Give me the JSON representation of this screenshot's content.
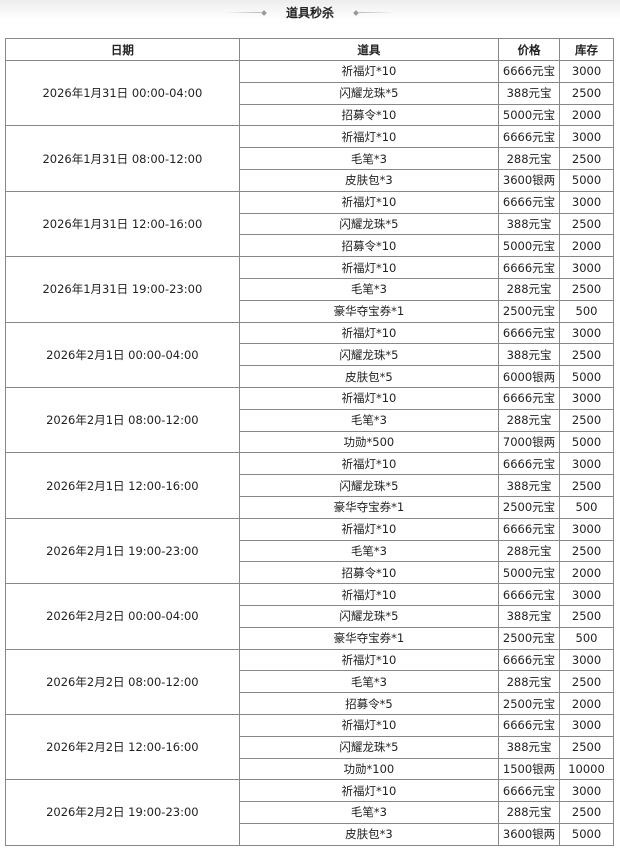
{
  "title": "道具秒杀",
  "headers": [
    "日期",
    "道具",
    "价格",
    "库存"
  ],
  "slots": [
    {
      "date": "2026年1月31日 00:00-04:00",
      "items": [
        [
          "祈福灯*10",
          "6666元宝",
          "3000"
        ],
        [
          "闪耀龙珠*5",
          "388元宝",
          "2500"
        ],
        [
          "招募令*10",
          "5000元宝",
          "2000"
        ]
      ]
    },
    {
      "date": "2026年1月31日 08:00-12:00",
      "items": [
        [
          "祈福灯*10",
          "6666元宝",
          "3000"
        ],
        [
          "毛笔*3",
          "288元宝",
          "2500"
        ],
        [
          "皮肤包*3",
          "3600银两",
          "5000"
        ]
      ]
    },
    {
      "date": "2026年1月31日 12:00-16:00",
      "items": [
        [
          "祈福灯*10",
          "6666元宝",
          "3000"
        ],
        [
          "闪耀龙珠*5",
          "388元宝",
          "2500"
        ],
        [
          "招募令*10",
          "5000元宝",
          "2000"
        ]
      ]
    },
    {
      "date": "2026年1月31日 19:00-23:00",
      "items": [
        [
          "祈福灯*10",
          "6666元宝",
          "3000"
        ],
        [
          "毛笔*3",
          "288元宝",
          "2500"
        ],
        [
          "豪华夺宝券*1",
          "2500元宝",
          "500"
        ]
      ]
    },
    {
      "date": "2026年2月1日 00:00-04:00",
      "items": [
        [
          "祈福灯*10",
          "6666元宝",
          "3000"
        ],
        [
          "闪耀龙珠*5",
          "388元宝",
          "2500"
        ],
        [
          "皮肤包*5",
          "6000银两",
          "5000"
        ]
      ]
    },
    {
      "date": "2026年2月1日 08:00-12:00",
      "items": [
        [
          "祈福灯*10",
          "6666元宝",
          "3000"
        ],
        [
          "毛笔*3",
          "288元宝",
          "2500"
        ],
        [
          "功勋*500",
          "7000银两",
          "5000"
        ]
      ]
    },
    {
      "date": "2026年2月1日 12:00-16:00",
      "items": [
        [
          "祈福灯*10",
          "6666元宝",
          "3000"
        ],
        [
          "闪耀龙珠*5",
          "388元宝",
          "2500"
        ],
        [
          "豪华夺宝券*1",
          "2500元宝",
          "500"
        ]
      ]
    },
    {
      "date": "2026年2月1日 19:00-23:00",
      "items": [
        [
          "祈福灯*10",
          "6666元宝",
          "3000"
        ],
        [
          "毛笔*3",
          "288元宝",
          "2500"
        ],
        [
          "招募令*10",
          "5000元宝",
          "2000"
        ]
      ]
    },
    {
      "date": "2026年2月2日 00:00-04:00",
      "items": [
        [
          "祈福灯*10",
          "6666元宝",
          "3000"
        ],
        [
          "闪耀龙珠*5",
          "388元宝",
          "2500"
        ],
        [
          "豪华夺宝券*1",
          "2500元宝",
          "500"
        ]
      ]
    },
    {
      "date": "2026年2月2日 08:00-12:00",
      "items": [
        [
          "祈福灯*10",
          "6666元宝",
          "3000"
        ],
        [
          "毛笔*3",
          "288元宝",
          "2500"
        ],
        [
          "招募令*5",
          "2500元宝",
          "2000"
        ]
      ]
    },
    {
      "date": "2026年2月2日 12:00-16:00",
      "items": [
        [
          "祈福灯*10",
          "6666元宝",
          "3000"
        ],
        [
          "闪耀龙珠*5",
          "388元宝",
          "2500"
        ],
        [
          "功勋*100",
          "1500银两",
          "10000"
        ]
      ]
    },
    {
      "date": "2026年2月2日 19:00-23:00",
      "items": [
        [
          "祈福灯*10",
          "6666元宝",
          "3000"
        ],
        [
          "毛笔*3",
          "288元宝",
          "2500"
        ],
        [
          "皮肤包*3",
          "3600银两",
          "5000"
        ]
      ]
    }
  ]
}
